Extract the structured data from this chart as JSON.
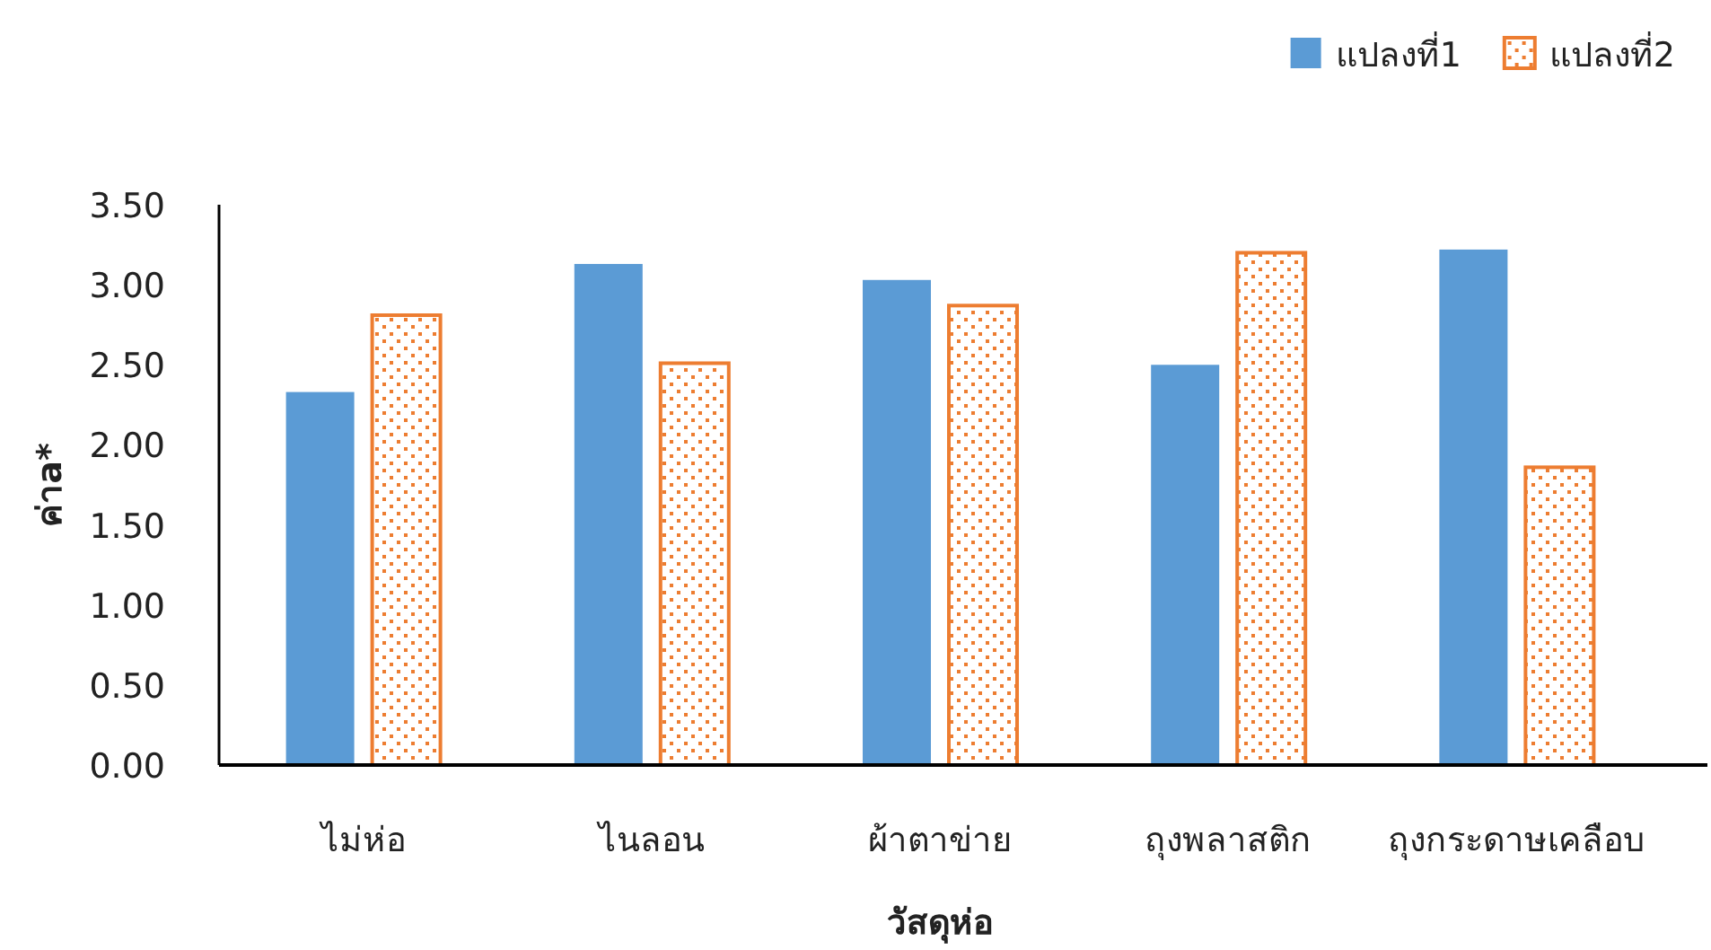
{
  "chart_data": {
    "type": "bar",
    "xlabel": "วัสดุห่อ",
    "ylabel": "ค่าa*",
    "categories": [
      "ไม่ห่อ",
      "ไนลอน",
      "ผ้าตาข่าย",
      "ถุงพลาสติก",
      "ถุงกระดาษเคลือบ"
    ],
    "series": [
      {
        "name": "แปลงที่1",
        "color": "#5b9bd5",
        "values": [
          2.33,
          3.13,
          3.03,
          2.5,
          3.22
        ]
      },
      {
        "name": "แปลงที่2",
        "color": "#ed7d31",
        "values": [
          2.81,
          2.51,
          2.87,
          3.2,
          1.86
        ]
      }
    ],
    "ylim": [
      0,
      3.5
    ],
    "yticks": [
      {
        "value": 0,
        "label": "0.00"
      },
      {
        "value": 0.5,
        "label": "0.50"
      },
      {
        "value": 1,
        "label": "1.00"
      },
      {
        "value": 1.5,
        "label": "1.50"
      },
      {
        "value": 2,
        "label": "2.00"
      },
      {
        "value": 2.5,
        "label": "2.50"
      },
      {
        "value": 3,
        "label": "3.00"
      },
      {
        "value": 3.5,
        "label": "3.50"
      }
    ],
    "legend": "top right"
  }
}
